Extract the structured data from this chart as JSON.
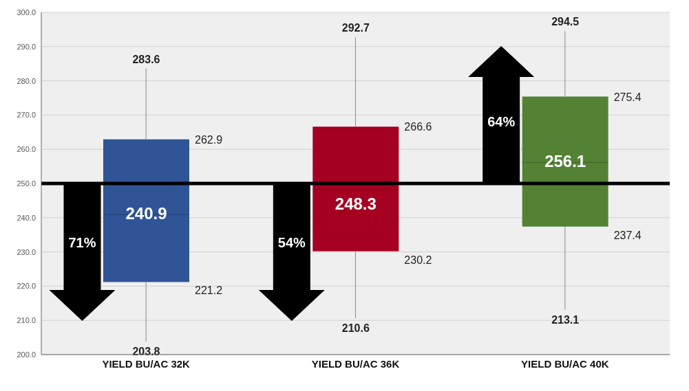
{
  "chart_data": {
    "type": "box",
    "categories": [
      "YIELD BU/AC 32K",
      "YIELD BU/AC 36K",
      "YIELD BU/AC 40K"
    ],
    "boxes": [
      {
        "low": 203.8,
        "q1": 221.2,
        "median": 240.9,
        "q3": 262.9,
        "high": 283.6
      },
      {
        "low": 210.6,
        "q1": 230.2,
        "median": 248.3,
        "q3": 266.6,
        "high": 292.7
      },
      {
        "low": 213.1,
        "q1": 237.4,
        "median": 256.1,
        "q3": 275.4,
        "high": 294.5
      }
    ],
    "colors": [
      "#2f5597",
      "#a50021",
      "#548235"
    ],
    "ylim": [
      200,
      300
    ],
    "yticks": [
      {
        "value": 200,
        "label": "200.0"
      },
      {
        "value": 210,
        "label": "210.0"
      },
      {
        "value": 220,
        "label": "220.0"
      },
      {
        "value": 230,
        "label": "230.0"
      },
      {
        "value": 240,
        "label": "240.0"
      },
      {
        "value": 250,
        "label": "250.0"
      },
      {
        "value": 260,
        "label": "260.0"
      },
      {
        "value": 270,
        "label": "270.0"
      },
      {
        "value": 280,
        "label": "280.0"
      },
      {
        "value": 290,
        "label": "290.0"
      },
      {
        "value": 300,
        "label": "300.0"
      }
    ],
    "grid": "y",
    "ref_lines": [
      {
        "axis": "y",
        "value": 250,
        "color": "#000000"
      }
    ],
    "annotations": [
      "71%",
      "54%",
      "64%",
      {
        "text": "283.6",
        "x": "YIELD BU/AC 32K",
        "y": 283.6
      },
      "262.9",
      "221.2",
      "266.6",
      "230.2",
      "275.4",
      "237.4",
      {
        "text": "240.9",
        "x": "YIELD BU/AC 32K",
        "y": 240.9
      },
      {
        "text": "203.8",
        "x": "YIELD BU/AC 32K",
        "y": 203.8
      },
      {
        "text": "292.7",
        "x": "YIELD BU/AC 36K",
        "y": 292.7
      },
      {
        "text": "248.3",
        "x": "YIELD BU/AC 36K",
        "y": 248.3
      },
      {
        "text": "210.6",
        "x": "YIELD BU/AC 36K",
        "y": 210.6
      },
      {
        "text": "294.5",
        "x": "YIELD BU/AC 40K",
        "y": 294.5
      },
      {
        "text": "256.1",
        "x": "YIELD BU/AC 40K",
        "y": 256.1
      },
      {
        "text": "213.1",
        "x": "YIELD BU/AC 40K",
        "y": 213.1
      }
    ]
  }
}
